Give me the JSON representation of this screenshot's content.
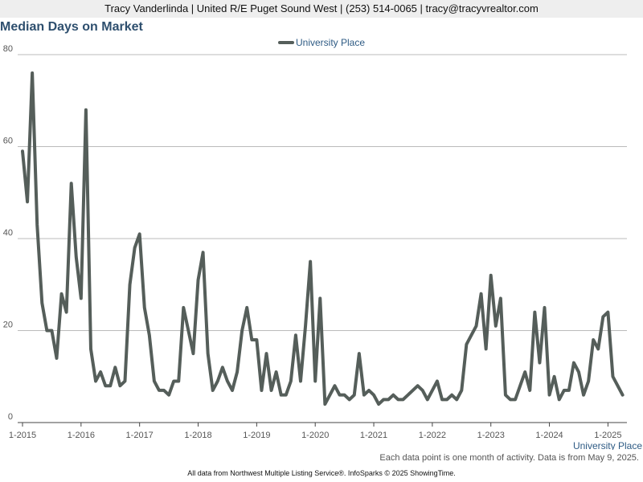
{
  "header": {
    "text": "Tracy Vanderlinda | United R/E Puget Sound West | (253) 514-0065 | tracy@tracyvrealtor.com"
  },
  "footer": {
    "note": "Each data point is one month of activity. Data is from May 9, 2025.",
    "credits": "All data from Northwest Multiple Listing Service®. InfoSparks © 2025 ShowingTime."
  },
  "chart_data": {
    "type": "line",
    "title": "Median Days on Market",
    "xlabel": "University Place",
    "ylabel": "",
    "ylim": [
      0,
      80
    ],
    "yticks": [
      "0",
      "20",
      "40",
      "60",
      "80"
    ],
    "xticks": [
      "1-2015",
      "1-2016",
      "1-2017",
      "1-2018",
      "1-2019",
      "1-2020",
      "1-2021",
      "1-2022",
      "1-2023",
      "1-2024",
      "1-2025"
    ],
    "grid": true,
    "legend_position": "top-center",
    "series": [
      {
        "name": "University Place",
        "color": "#555e5a",
        "start": "2015-01",
        "values": [
          59,
          48,
          76,
          43,
          26,
          20,
          20,
          14,
          28,
          24,
          52,
          36,
          27,
          68,
          16,
          9,
          11,
          8,
          8,
          12,
          8,
          9,
          30,
          38,
          41,
          25,
          19,
          9,
          7,
          7,
          6,
          9,
          9,
          25,
          20,
          15,
          31,
          37,
          15,
          7,
          9,
          12,
          9,
          7,
          11,
          20,
          25,
          18,
          18,
          7,
          15,
          7,
          11,
          6,
          6,
          9,
          19,
          9,
          21,
          35,
          9,
          27,
          4,
          6,
          8,
          6,
          6,
          5,
          6,
          15,
          6,
          7,
          6,
          4,
          5,
          5,
          6,
          5,
          5,
          6,
          7,
          8,
          7,
          5,
          7,
          9,
          5,
          5,
          6,
          5,
          7,
          17,
          19,
          21,
          28,
          16,
          32,
          21,
          27,
          6,
          5,
          5,
          8,
          11,
          7,
          24,
          13,
          25,
          6,
          10,
          5,
          7,
          7,
          13,
          11,
          6,
          9,
          18,
          16,
          23,
          24,
          10,
          8,
          6
        ]
      }
    ]
  }
}
